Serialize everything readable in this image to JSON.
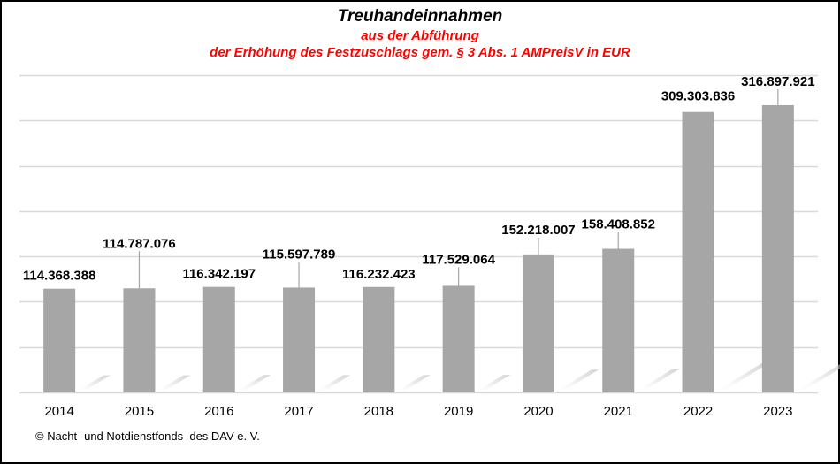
{
  "chart_data": {
    "type": "bar",
    "title": "Treuhandeinnahmen",
    "subtitle_lines": [
      "aus der Abführung",
      "der Erhöhung des Festzuschlags gem. § 3 Abs. 1 AMPreisV in EUR"
    ],
    "categories": [
      "2014",
      "2015",
      "2016",
      "2017",
      "2018",
      "2019",
      "2020",
      "2021",
      "2022",
      "2023"
    ],
    "values": [
      114368388,
      114787076,
      116342197,
      115597789,
      116232423,
      117529064,
      152218007,
      158408852,
      309303836,
      316897921
    ],
    "data_labels": [
      "114.368.388",
      "114.787.076",
      "116.342.197",
      "115.597.789",
      "116.232.423",
      "117.529.064",
      "152.218.007",
      "158.408.852",
      "309.303.836",
      "316.897.921"
    ],
    "ylim": [
      0,
      350000000
    ],
    "y_gridline_step": 50000000,
    "y_axis_labels_shown": false,
    "grid": true,
    "legend": "none",
    "bar_color": "#a6a6a6",
    "label_connector_color": "#a6a6a6",
    "footer": "© Nacht- und Notdienstfonds  des DAV e. V."
  },
  "colors": {
    "title": "#000000",
    "subtitle": "#ff0000",
    "gridline": "#d9d9d9",
    "border": "#000000"
  }
}
